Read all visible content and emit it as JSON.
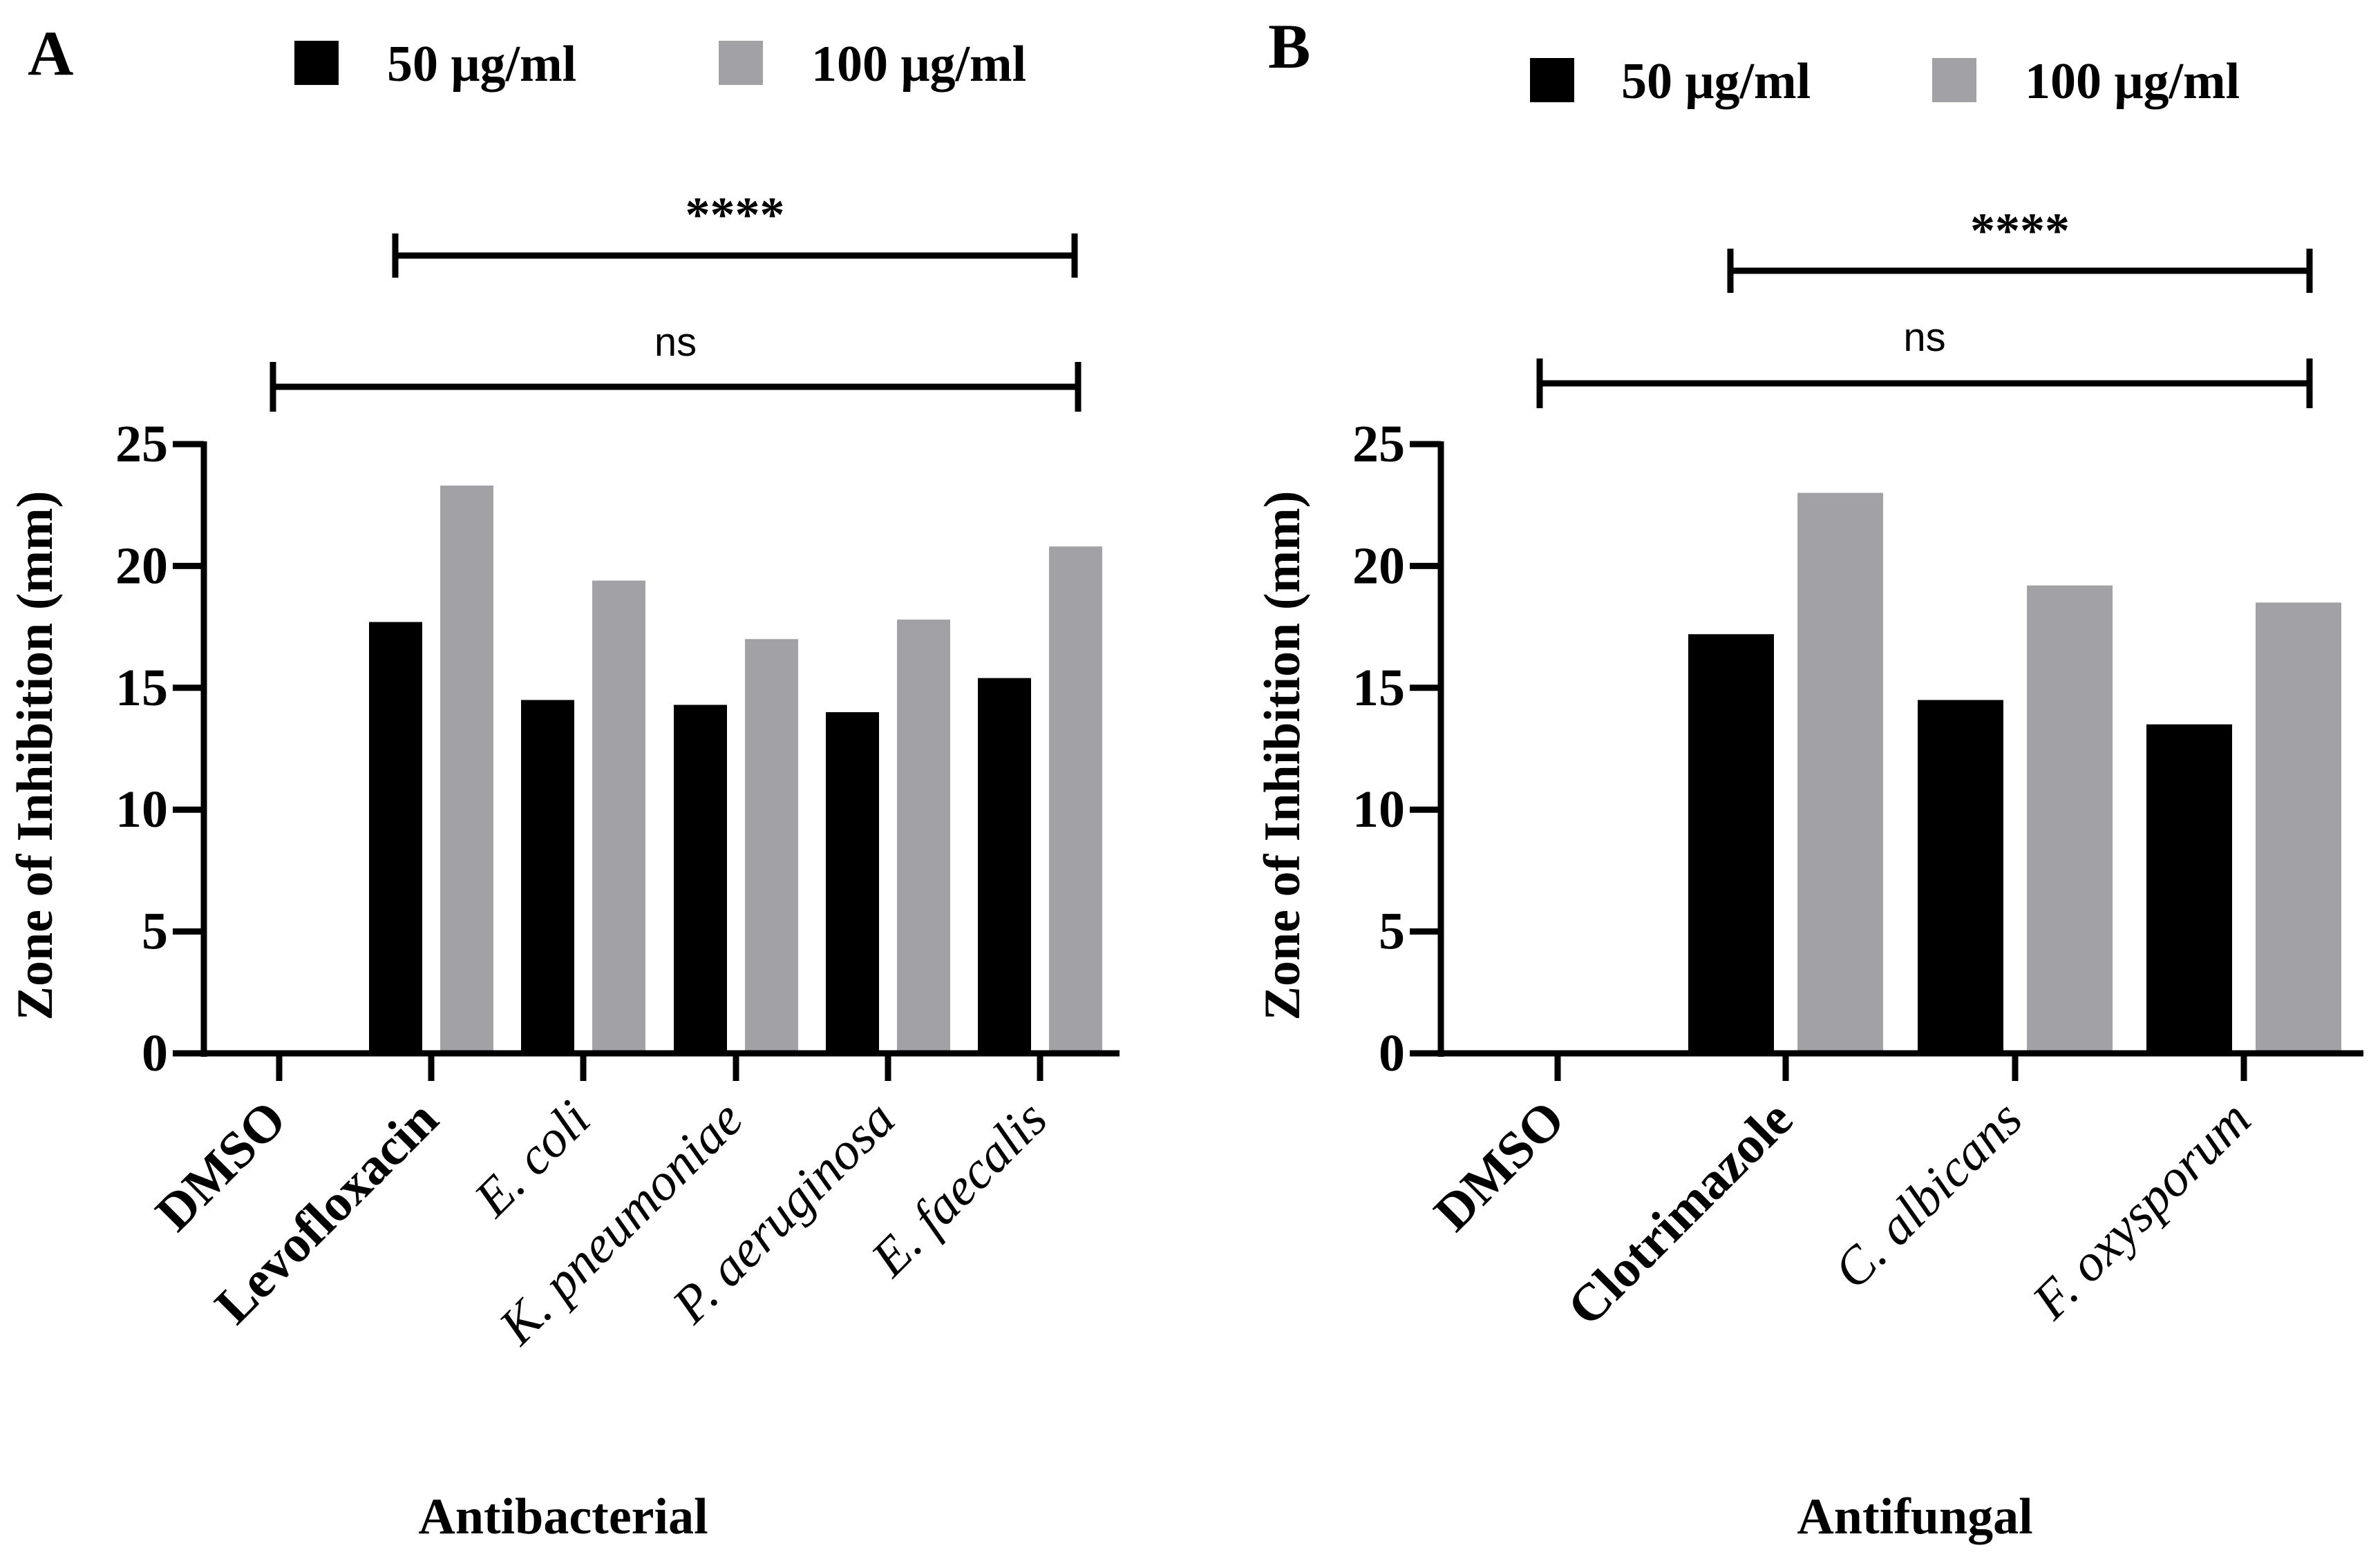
{
  "legend": {
    "series_50": "50 μg/ml",
    "series_100": "100 μg/ml"
  },
  "colors": {
    "series_50": "#000000",
    "series_100": "#a2a2a6",
    "axis": "#000000"
  },
  "chart_data": [
    {
      "panel_label": "A",
      "type": "bar",
      "title": "",
      "xlabel": "Antibacterial",
      "ylabel": "Zone of Inhibition (mm)",
      "ylim": [
        0,
        25
      ],
      "yticks": [
        "0",
        "5",
        "10",
        "15",
        "20",
        "25"
      ],
      "categories": [
        "DMSO",
        "Levofloxacin",
        "E. coli",
        "K. pneumoniae",
        "P. aeruginosa",
        "E. faecalis"
      ],
      "category_styles": [
        "bold",
        "bold",
        "italic",
        "italic",
        "italic",
        "italic"
      ],
      "series": [
        {
          "name": "50 μg/ml",
          "values": [
            0,
            17.7,
            14.5,
            14.3,
            14.0,
            15.4
          ]
        },
        {
          "name": "100 μg/ml",
          "values": [
            0,
            23.3,
            19.4,
            17.0,
            17.8,
            20.8
          ]
        }
      ],
      "annotations": [
        {
          "text": "****",
          "from_category": 1,
          "to_category": 5
        },
        {
          "text": "ns",
          "from_category": 0,
          "to_category": 5
        }
      ]
    },
    {
      "panel_label": "B",
      "type": "bar",
      "title": "",
      "xlabel": "Antifungal",
      "ylabel": "Zone of Inhibition (mm)",
      "ylim": [
        0,
        25
      ],
      "yticks": [
        "0",
        "5",
        "10",
        "15",
        "20",
        "25"
      ],
      "categories": [
        "DMSO",
        "Clotrimazole",
        "C. albicans",
        "F. oxysporum"
      ],
      "category_styles": [
        "bold",
        "bold",
        "italic",
        "italic"
      ],
      "series": [
        {
          "name": "50 μg/ml",
          "values": [
            0,
            17.2,
            14.5,
            13.5
          ]
        },
        {
          "name": "100 μg/ml",
          "values": [
            0,
            23.0,
            19.2,
            18.5
          ]
        }
      ],
      "annotations": [
        {
          "text": "****",
          "from_category": 1,
          "to_category": 3
        },
        {
          "text": "ns",
          "from_category": 0,
          "to_category": 3
        }
      ]
    }
  ]
}
